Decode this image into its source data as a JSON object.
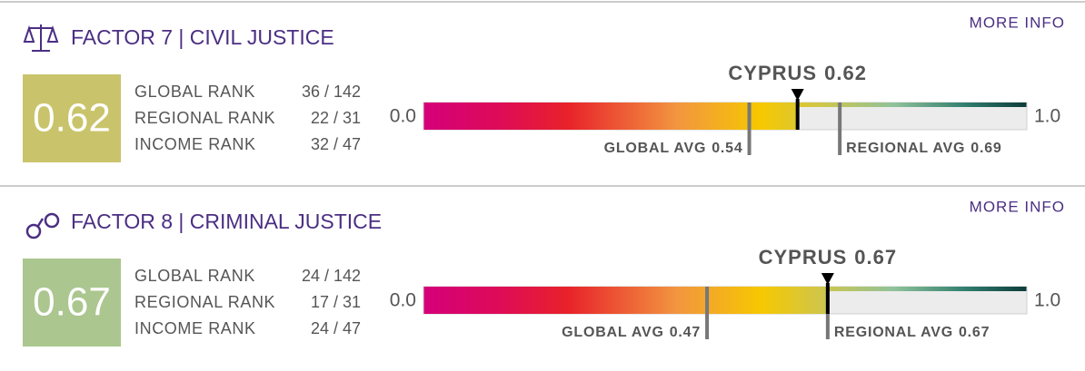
{
  "chart_data": [
    {
      "type": "score-bar",
      "title": "FACTOR 7 | CIVIL JUSTICE",
      "link": "MORE INFO",
      "score": 0.62,
      "color": "#c9c46b",
      "ranks": [
        {
          "label": "GLOBAL RANK",
          "value": "36 / 142"
        },
        {
          "label": "REGIONAL RANK",
          "value": "22 / 31"
        },
        {
          "label": "INCOME RANK",
          "value": "32 / 47"
        }
      ],
      "country": "CYPRUS",
      "xlim": [
        0,
        1
      ],
      "xticks": [
        {
          "value": 0,
          "label": "0.0"
        },
        {
          "value": 1,
          "label": "1.0"
        }
      ],
      "averages": [
        {
          "label": "GLOBAL AVG",
          "value": 0.54
        },
        {
          "label": "REGIONAL AVG",
          "value": 0.69
        }
      ]
    },
    {
      "type": "score-bar",
      "title": "FACTOR 8 | CRIMINAL JUSTICE",
      "link": "MORE INFO",
      "score": 0.67,
      "color": "#abc68f",
      "ranks": [
        {
          "label": "GLOBAL RANK",
          "value": "24 / 142"
        },
        {
          "label": "REGIONAL RANK",
          "value": "17 / 31"
        },
        {
          "label": "INCOME RANK",
          "value": "24 / 47"
        }
      ],
      "country": "CYPRUS",
      "xlim": [
        0,
        1
      ],
      "xticks": [
        {
          "value": 0,
          "label": "0.0"
        },
        {
          "value": 1,
          "label": "1.0"
        }
      ],
      "averages": [
        {
          "label": "GLOBAL AVG",
          "value": 0.47
        },
        {
          "label": "REGIONAL AVG",
          "value": 0.67
        }
      ]
    }
  ]
}
